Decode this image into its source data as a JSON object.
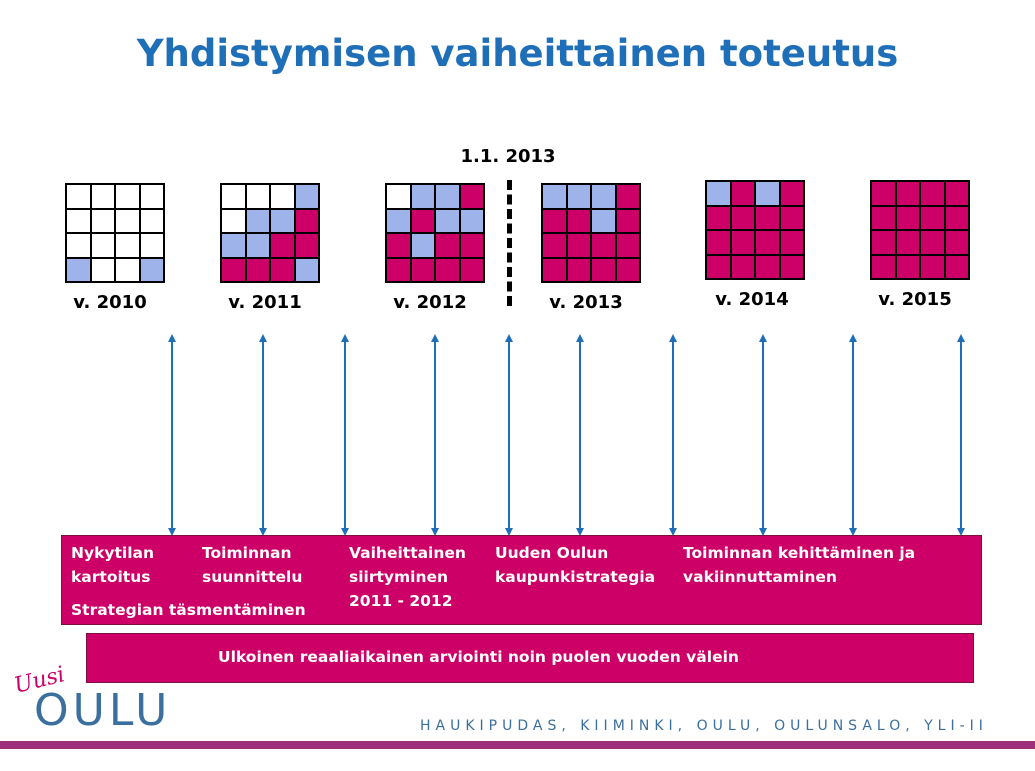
{
  "title": "Yhdistymisen vaiheittainen toteutus",
  "milestone": "1.1. 2013",
  "colors": {
    "white": "#ffffff",
    "blue": "#9db3ea",
    "magenta": "#cc0066",
    "title": "#1f6fb8"
  },
  "years": [
    {
      "label": "v. 2010",
      "cells": [
        "w",
        "w",
        "w",
        "w",
        "w",
        "w",
        "w",
        "w",
        "w",
        "w",
        "w",
        "w",
        "b",
        "w",
        "w",
        "b"
      ]
    },
    {
      "label": "v. 2011",
      "cells": [
        "w",
        "w",
        "w",
        "b",
        "w",
        "b",
        "b",
        "m",
        "b",
        "b",
        "m",
        "m",
        "m",
        "m",
        "m",
        "b"
      ]
    },
    {
      "label": "v. 2012",
      "cells": [
        "w",
        "b",
        "b",
        "m",
        "b",
        "m",
        "b",
        "b",
        "m",
        "b",
        "m",
        "m",
        "m",
        "m",
        "m",
        "m"
      ]
    },
    {
      "label": "v. 2013",
      "cells": [
        "b",
        "b",
        "b",
        "m",
        "m",
        "m",
        "b",
        "m",
        "m",
        "m",
        "m",
        "m",
        "m",
        "m",
        "m",
        "m"
      ]
    },
    {
      "label": "v. 2014",
      "cells": [
        "b",
        "m",
        "b",
        "m",
        "m",
        "m",
        "m",
        "m",
        "m",
        "m",
        "m",
        "m",
        "m",
        "m",
        "m",
        "m"
      ]
    },
    {
      "label": "v. 2015",
      "cells": [
        "m",
        "m",
        "m",
        "m",
        "m",
        "m",
        "m",
        "m",
        "m",
        "m",
        "m",
        "m",
        "m",
        "m",
        "m",
        "m"
      ]
    }
  ],
  "phases": [
    {
      "line1": "Nykytilan",
      "line2": "kartoitus",
      "line3": ""
    },
    {
      "line1": "Toiminnan",
      "line2": "suunnittelu",
      "line3": ""
    },
    {
      "line1": "Vaiheittainen",
      "line2": "siirtyminen",
      "line3": "2011 - 2012"
    },
    {
      "line1": "Uuden Oulun",
      "line2": "kaupunkistrategia",
      "line3": ""
    },
    {
      "line1": "Toiminnan kehittäminen ja",
      "line2": "vakiinnuttaminen",
      "line3": ""
    }
  ],
  "strategy": "Strategian täsmentäminen",
  "evaluation": "Ulkoinen reaaliaikainen arviointi noin puolen vuoden välein",
  "logo": {
    "script": "Uusi",
    "name": "OULU"
  },
  "footer": "HAUKIPUDAS, KIIMINKI, OULU, OULUNSALO, YLI-II"
}
